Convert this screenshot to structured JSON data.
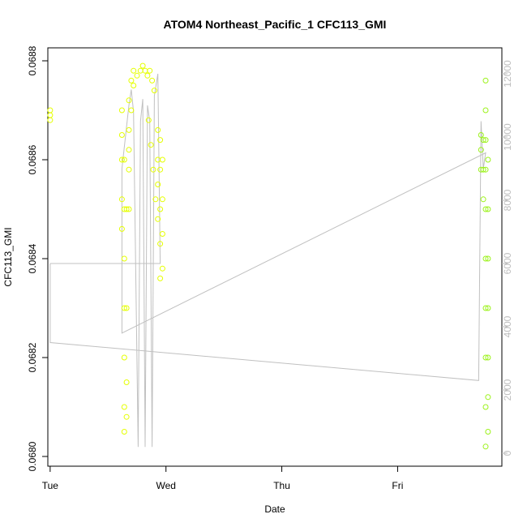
{
  "chart_data": {
    "type": "scatter",
    "title": "ATOM4 Northeast_Pacific_1 CFC113_GMI",
    "xlabel": "Date",
    "ylabel": "CFC113_GMI",
    "x_ticks": [
      "Tue",
      "Wed",
      "Thu",
      "Fri"
    ],
    "x_range_days": [
      -0.02,
      3.9
    ],
    "y_left": {
      "range": [
        0.068,
        0.0688
      ],
      "ticks": [
        "0.0680",
        "0.0682",
        "0.0684",
        "0.0686",
        "0.0688"
      ]
    },
    "y_right": {
      "range": [
        0,
        12000
      ],
      "ticks": [
        "0",
        "2000",
        "4000",
        "6000",
        "8000",
        "10000",
        "12000"
      ],
      "color": "#bdbdbd"
    },
    "colors": {
      "series_yellow": "#e5ff00",
      "series_green": "#9cf21a",
      "altitude_line": "#c0c0c0"
    },
    "series": [
      {
        "marker": "circle-open",
        "axis": "left",
        "points": [
          [
            0.0,
            0.06869
          ],
          [
            0.0,
            0.0687
          ],
          [
            0.0,
            0.06868
          ],
          [
            0.62,
            0.0687
          ],
          [
            0.62,
            0.06865
          ],
          [
            0.62,
            0.0686
          ],
          [
            0.62,
            0.06852
          ],
          [
            0.62,
            0.06846
          ],
          [
            0.64,
            0.0686
          ],
          [
            0.64,
            0.0685
          ],
          [
            0.64,
            0.0684
          ],
          [
            0.64,
            0.0683
          ],
          [
            0.64,
            0.0682
          ],
          [
            0.64,
            0.0681
          ],
          [
            0.64,
            0.06805
          ],
          [
            0.66,
            0.0685
          ],
          [
            0.66,
            0.0683
          ],
          [
            0.66,
            0.06815
          ],
          [
            0.66,
            0.06808
          ],
          [
            0.68,
            0.06872
          ],
          [
            0.68,
            0.06866
          ],
          [
            0.68,
            0.06862
          ],
          [
            0.68,
            0.06858
          ],
          [
            0.68,
            0.0685
          ],
          [
            0.7,
            0.06876
          ],
          [
            0.7,
            0.0687
          ],
          [
            0.72,
            0.06878
          ],
          [
            0.72,
            0.06875
          ],
          [
            0.75,
            0.06877
          ],
          [
            0.78,
            0.06878
          ],
          [
            0.8,
            0.06879
          ],
          [
            0.82,
            0.06878
          ],
          [
            0.84,
            0.06877
          ],
          [
            0.86,
            0.06878
          ],
          [
            0.88,
            0.06876
          ],
          [
            0.9,
            0.06874
          ],
          [
            0.85,
            0.06868
          ],
          [
            0.87,
            0.06863
          ],
          [
            0.89,
            0.06858
          ],
          [
            0.91,
            0.06852
          ],
          [
            0.93,
            0.06866
          ],
          [
            0.93,
            0.0686
          ],
          [
            0.93,
            0.06855
          ],
          [
            0.93,
            0.06848
          ],
          [
            0.95,
            0.06864
          ],
          [
            0.95,
            0.06858
          ],
          [
            0.95,
            0.0685
          ],
          [
            0.95,
            0.06843
          ],
          [
            0.95,
            0.06836
          ],
          [
            0.97,
            0.0686
          ],
          [
            0.97,
            0.06852
          ],
          [
            0.97,
            0.06845
          ],
          [
            0.97,
            0.06838
          ],
          [
            3.72,
            0.06865
          ],
          [
            3.72,
            0.06862
          ],
          [
            3.72,
            0.06858
          ],
          [
            3.74,
            0.06864
          ],
          [
            3.74,
            0.06858
          ],
          [
            3.74,
            0.06852
          ],
          [
            3.76,
            0.06876
          ],
          [
            3.76,
            0.0687
          ],
          [
            3.76,
            0.06864
          ],
          [
            3.76,
            0.06858
          ],
          [
            3.76,
            0.0685
          ],
          [
            3.76,
            0.0684
          ],
          [
            3.76,
            0.0683
          ],
          [
            3.76,
            0.0682
          ],
          [
            3.76,
            0.0681
          ],
          [
            3.76,
            0.06802
          ],
          [
            3.78,
            0.0686
          ],
          [
            3.78,
            0.0685
          ],
          [
            3.78,
            0.0684
          ],
          [
            3.78,
            0.0683
          ],
          [
            3.78,
            0.0682
          ],
          [
            3.78,
            0.06812
          ],
          [
            3.78,
            0.06805
          ]
        ]
      },
      {
        "line": "altitude",
        "axis": "right",
        "points": [
          [
            0.0,
            6000
          ],
          [
            0.0,
            3500
          ],
          [
            3.7,
            2300
          ],
          [
            3.72,
            10500
          ],
          [
            3.74,
            9000
          ],
          [
            3.76,
            9500
          ],
          [
            0.62,
            3800
          ],
          [
            0.62,
            9000
          ],
          [
            0.68,
            11000
          ],
          [
            0.7,
            11500
          ],
          [
            0.72,
            10800
          ],
          [
            0.76,
            200
          ],
          [
            0.78,
            10500
          ],
          [
            0.8,
            11200
          ],
          [
            0.82,
            200
          ],
          [
            0.84,
            11000
          ],
          [
            0.86,
            10500
          ],
          [
            0.88,
            200
          ],
          [
            0.9,
            11300
          ],
          [
            0.93,
            12000
          ],
          [
            0.95,
            6000
          ],
          [
            0.0,
            6000
          ]
        ]
      }
    ]
  }
}
